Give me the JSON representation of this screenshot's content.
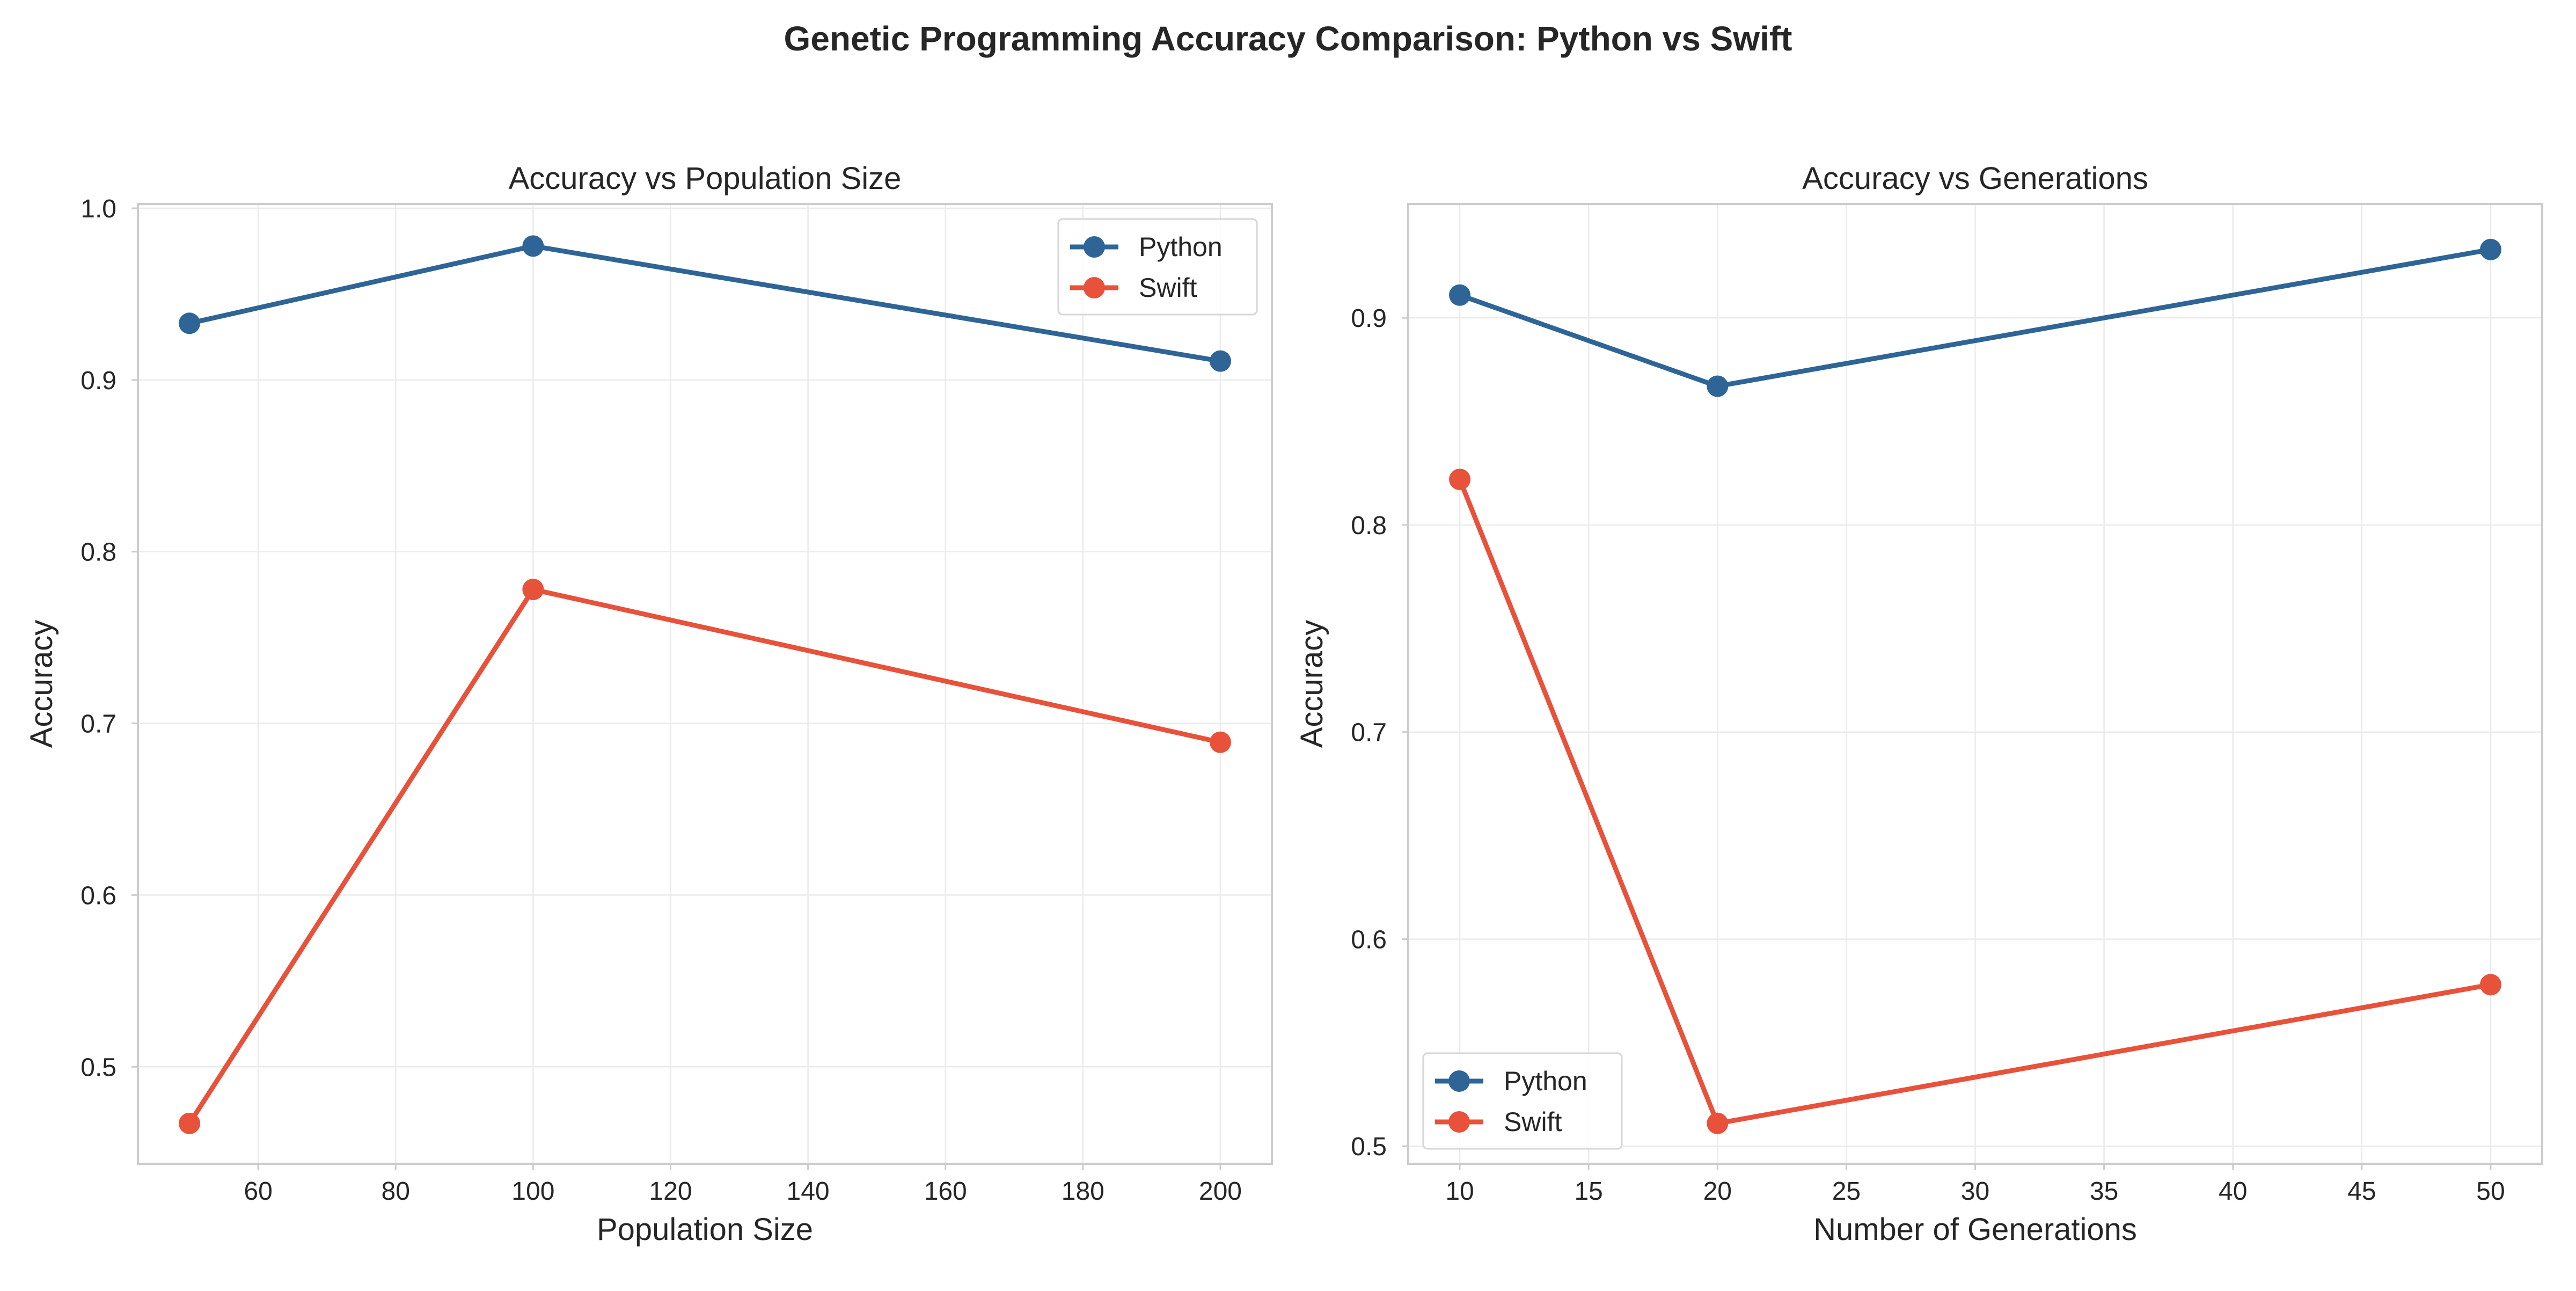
{
  "title": "Genetic Programming Accuracy Comparison: Python vs Swift",
  "colors": {
    "python": "#2e6596",
    "swift": "#e8513a"
  },
  "chart_data": [
    {
      "type": "line",
      "title": "Accuracy vs Population Size",
      "xlabel": "Population Size",
      "ylabel": "Accuracy",
      "x": [
        50,
        100,
        200
      ],
      "xlim": [
        42.5,
        207.5
      ],
      "ylim": [
        0.4435,
        1.0025
      ],
      "xticks": [
        60,
        80,
        100,
        120,
        140,
        160,
        180,
        200
      ],
      "yticks": [
        0.5,
        0.6,
        0.7,
        0.8,
        0.9,
        1.0
      ],
      "ytick_labels": [
        "0.5",
        "0.6",
        "0.7",
        "0.8",
        "0.9",
        "1.0"
      ],
      "grid": true,
      "legend_position": "top-right",
      "series": [
        {
          "name": "Python",
          "color": "#2e6596",
          "values": [
            0.933,
            0.978,
            0.911
          ]
        },
        {
          "name": "Swift",
          "color": "#e8513a",
          "values": [
            0.467,
            0.778,
            0.689
          ]
        }
      ]
    },
    {
      "type": "line",
      "title": "Accuracy vs Generations",
      "xlabel": "Number of Generations",
      "ylabel": "Accuracy",
      "x": [
        10,
        20,
        50
      ],
      "xlim": [
        8.0,
        52.0
      ],
      "ylim": [
        0.4915,
        0.955
      ],
      "xticks": [
        10,
        15,
        20,
        25,
        30,
        35,
        40,
        45,
        50
      ],
      "yticks": [
        0.5,
        0.6,
        0.7,
        0.8,
        0.9
      ],
      "ytick_labels": [
        "0.5",
        "0.6",
        "0.7",
        "0.8",
        "0.9"
      ],
      "grid": true,
      "legend_position": "bottom-left",
      "series": [
        {
          "name": "Python",
          "color": "#2e6596",
          "values": [
            0.911,
            0.867,
            0.933
          ]
        },
        {
          "name": "Swift",
          "color": "#e8513a",
          "values": [
            0.822,
            0.511,
            0.578
          ]
        }
      ]
    }
  ]
}
